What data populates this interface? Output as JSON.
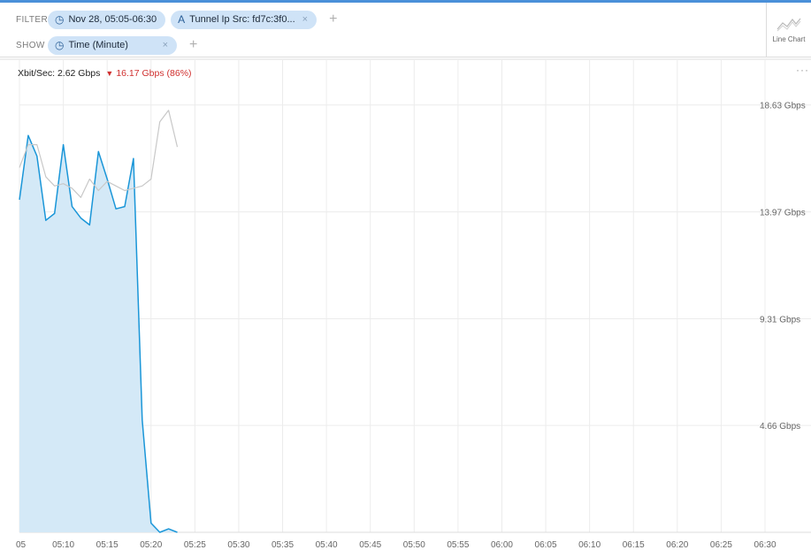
{
  "filter_bar": {
    "filter_label": "FILTER",
    "show_label": "SHOW",
    "filters": [
      {
        "icon": "clock-icon",
        "label": "Nov 28, 05:05-06:30",
        "removable": false
      },
      {
        "icon": "person-icon",
        "label": "Tunnel Ip Src: fd7c:3f0...",
        "removable": true
      }
    ],
    "show": [
      {
        "icon": "clock-icon",
        "label": "Time (Minute)",
        "removable": true
      }
    ],
    "add_glyph": "+",
    "remove_glyph": "×"
  },
  "chart_type": {
    "label": "Line Chart",
    "icon": "line-chart-icon"
  },
  "more_label": "···",
  "readout": {
    "metric": "Xbit/Sec: 2.62 Gbps",
    "arrow": "▼",
    "delta": "16.17 Gbps (86%)"
  },
  "colors": {
    "current": "#1a96d8",
    "current_fill": "#d4e9f7",
    "previous": "#c8c8c8",
    "delta": "#d0302f",
    "grid": "#ececec"
  },
  "chart_data": {
    "type": "line",
    "title": "",
    "xlabel": "",
    "ylabel": "",
    "ylim": [
      0,
      20.2
    ],
    "x_range_minutes": [
      0,
      85
    ],
    "x_ticks": [
      "05",
      "05:10",
      "05:15",
      "05:20",
      "05:25",
      "05:30",
      "05:35",
      "05:40",
      "05:45",
      "05:50",
      "05:55",
      "06:00",
      "06:05",
      "06:10",
      "06:15",
      "06:20",
      "06:25",
      "06:30"
    ],
    "y_ticks": [
      {
        "value": 4.66,
        "label": "4.66 Gbps"
      },
      {
        "value": 9.31,
        "label": "9.31 Gbps"
      },
      {
        "value": 13.97,
        "label": "13.97 Gbps"
      },
      {
        "value": 18.63,
        "label": "18.63 Gbps"
      }
    ],
    "grid": true,
    "series": [
      {
        "key": "current",
        "area": true,
        "points": [
          [
            0,
            14.5
          ],
          [
            1,
            17.3
          ],
          [
            2,
            16.4
          ],
          [
            3,
            13.6
          ],
          [
            4,
            13.9
          ],
          [
            5,
            16.9
          ],
          [
            6,
            14.2
          ],
          [
            7,
            13.7
          ],
          [
            8,
            13.4
          ],
          [
            9,
            16.6
          ],
          [
            10,
            15.4
          ],
          [
            11,
            14.1
          ],
          [
            12,
            14.2
          ],
          [
            13,
            16.3
          ],
          [
            14,
            4.9
          ],
          [
            15,
            0.4
          ],
          [
            16,
            0.0
          ],
          [
            17,
            0.15
          ],
          [
            18,
            0.0
          ]
        ]
      },
      {
        "key": "previous",
        "area": false,
        "points": [
          [
            0,
            15.9
          ],
          [
            1,
            16.9
          ],
          [
            2,
            16.9
          ],
          [
            3,
            15.5
          ],
          [
            4,
            15.1
          ],
          [
            5,
            15.2
          ],
          [
            6,
            15.0
          ],
          [
            7,
            14.6
          ],
          [
            8,
            15.4
          ],
          [
            9,
            14.9
          ],
          [
            10,
            15.3
          ],
          [
            11,
            15.1
          ],
          [
            12,
            14.9
          ],
          [
            13,
            15.0
          ],
          [
            14,
            15.1
          ],
          [
            15,
            15.4
          ],
          [
            16,
            17.9
          ],
          [
            17,
            18.4
          ],
          [
            18,
            16.8
          ]
        ]
      }
    ]
  }
}
